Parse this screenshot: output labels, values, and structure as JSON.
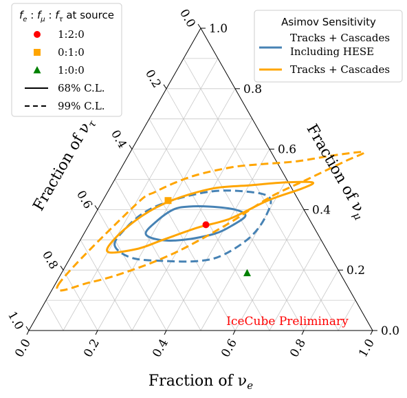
{
  "chart_data": {
    "type": "ternary",
    "xlabel": "Fraction of νe",
    "ylabel_right": "Fraction of νμ",
    "ylabel_left": "Fraction of ντ",
    "tick_labels": [
      "0.0",
      "0.2",
      "0.4",
      "0.6",
      "0.8",
      "1.0"
    ],
    "grid": true,
    "watermark": "IceCube Preliminary",
    "source_legend": {
      "title": "fe : fμ : fτ at source",
      "entries": [
        {
          "label": "1:2:0",
          "marker": "circle",
          "color": "#ff0000"
        },
        {
          "label": "0:1:0",
          "marker": "square",
          "color": "#ffa500"
        },
        {
          "label": "1:0:0",
          "marker": "triangle",
          "color": "#008000"
        },
        {
          "label": "68% C.L.",
          "line": "solid"
        },
        {
          "label": "99% C.L.",
          "line": "dashed"
        }
      ]
    },
    "sensitivity_legend": {
      "title": "Asimov Sensitivity",
      "entries": [
        {
          "label_lines": [
            "Tracks + Cascades",
            "Including HESE"
          ],
          "color": "#4682b4"
        },
        {
          "label_lines": [
            "Tracks + Cascades"
          ],
          "color": "#ffa500"
        }
      ]
    },
    "points": [
      {
        "name": "1:2:0",
        "fe": 0.34,
        "fmu": 0.35,
        "ftau": 0.31,
        "color": "#ff0000",
        "marker": "circle"
      },
      {
        "name": "0:1:0",
        "fe": 0.19,
        "fmu": 0.43,
        "ftau": 0.38,
        "color": "#ffa500",
        "marker": "square"
      },
      {
        "name": "1:0:0",
        "fe": 0.54,
        "fmu": 0.19,
        "ftau": 0.27,
        "color": "#008000",
        "marker": "triangle"
      }
    ],
    "series": [
      {
        "name": "Tracks + Cascades Including HESE",
        "cl": "68% C.L.",
        "color": "#4682b4",
        "dash": false,
        "points": [
          [
            0.18,
            0.32
          ],
          [
            0.19,
            0.36
          ],
          [
            0.22,
            0.4
          ],
          [
            0.26,
            0.41
          ],
          [
            0.32,
            0.41
          ],
          [
            0.4,
            0.4
          ],
          [
            0.44,
            0.38
          ],
          [
            0.42,
            0.35
          ],
          [
            0.38,
            0.32
          ],
          [
            0.3,
            0.3
          ],
          [
            0.23,
            0.3
          ]
        ]
      },
      {
        "name": "Tracks + Cascades Including HESE",
        "cl": "99% C.L.",
        "color": "#4682b4",
        "dash": true,
        "points": [
          [
            0.11,
            0.28
          ],
          [
            0.11,
            0.33
          ],
          [
            0.14,
            0.39
          ],
          [
            0.2,
            0.43
          ],
          [
            0.3,
            0.46
          ],
          [
            0.4,
            0.46
          ],
          [
            0.48,
            0.44
          ],
          [
            0.5,
            0.38
          ],
          [
            0.49,
            0.31
          ],
          [
            0.44,
            0.25
          ],
          [
            0.38,
            0.23
          ],
          [
            0.28,
            0.23
          ],
          [
            0.18,
            0.24
          ]
        ]
      },
      {
        "name": "Tracks + Cascades",
        "cl": "68% C.L.",
        "color": "#ffa500",
        "dash": false,
        "points": [
          [
            0.1,
            0.26
          ],
          [
            0.1,
            0.31
          ],
          [
            0.14,
            0.38
          ],
          [
            0.2,
            0.43
          ],
          [
            0.3,
            0.47
          ],
          [
            0.4,
            0.48
          ],
          [
            0.5,
            0.49
          ],
          [
            0.58,
            0.49
          ],
          [
            0.56,
            0.47
          ],
          [
            0.48,
            0.43
          ],
          [
            0.4,
            0.37
          ],
          [
            0.32,
            0.34
          ],
          [
            0.24,
            0.3
          ],
          [
            0.18,
            0.27
          ]
        ]
      },
      {
        "name": "Tracks + Cascades",
        "cl": "99% C.L.",
        "color": "#ffa500",
        "dash": true,
        "points": [
          [
            0.01,
            0.15
          ],
          [
            0.1,
            0.41
          ],
          [
            0.14,
            0.46
          ],
          [
            0.22,
            0.51
          ],
          [
            0.32,
            0.54
          ],
          [
            0.4,
            0.55
          ],
          [
            0.5,
            0.56
          ],
          [
            0.6,
            0.58
          ],
          [
            0.68,
            0.59
          ],
          [
            0.64,
            0.56
          ],
          [
            0.56,
            0.5
          ],
          [
            0.48,
            0.44
          ],
          [
            0.4,
            0.35
          ],
          [
            0.3,
            0.26
          ],
          [
            0.2,
            0.2
          ],
          [
            0.1,
            0.16
          ]
        ]
      }
    ]
  }
}
